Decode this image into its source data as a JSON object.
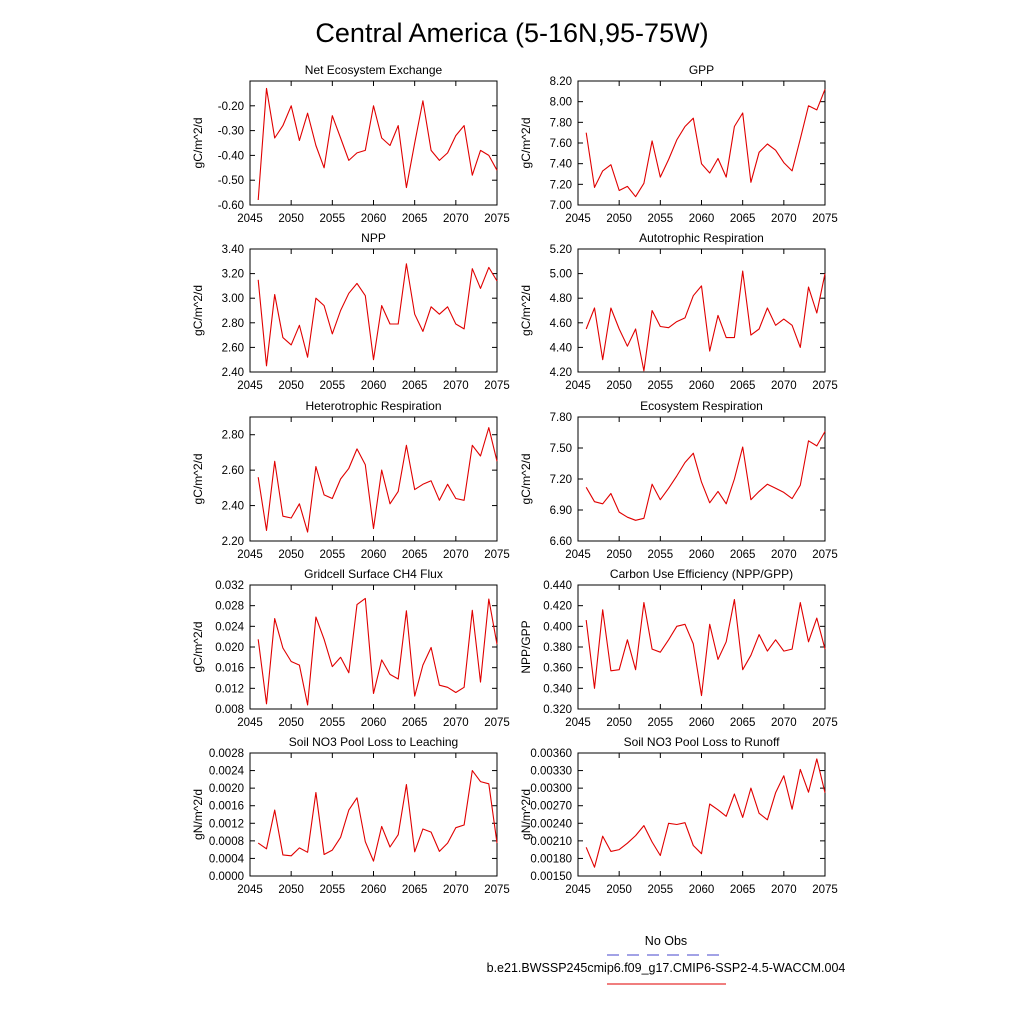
{
  "page": {
    "title": "Central America (5-16N,95-75W)",
    "legend": {
      "entries": [
        {
          "label": "No Obs",
          "color": "#6a6ad8",
          "style": "dashed"
        },
        {
          "label": "b.e21.BWSSP245cmip6.f09_g17.CMIP6-SSP2-4.5-WACCM.004",
          "color": "#e83030",
          "style": "solid"
        }
      ]
    }
  },
  "chart_data": [
    {
      "type": "line",
      "title": "Net Ecosystem Exchange",
      "ylabel": "gC/m^2/d",
      "xlim": [
        2045,
        2075
      ],
      "ylim": [
        -0.6,
        -0.1
      ],
      "xticks": [
        2045,
        2050,
        2055,
        2060,
        2065,
        2070,
        2075
      ],
      "xtick_labels": [
        "2045",
        "2050",
        "2055",
        "2060",
        "2065",
        "2070",
        "2075"
      ],
      "yticks": [
        -0.6,
        -0.5,
        -0.4,
        -0.3,
        -0.2
      ],
      "ytick_labels": [
        "-0.60",
        "-0.50",
        "-0.40",
        "-0.30",
        "-0.20"
      ],
      "x": [
        2046,
        2047,
        2048,
        2049,
        2050,
        2051,
        2052,
        2053,
        2054,
        2055,
        2056,
        2057,
        2058,
        2059,
        2060,
        2061,
        2062,
        2063,
        2064,
        2065,
        2066,
        2067,
        2068,
        2069,
        2070,
        2071,
        2072,
        2073,
        2074,
        2075
      ],
      "series": [
        {
          "color": "#e00000",
          "values": [
            -0.58,
            -0.13,
            -0.33,
            -0.28,
            -0.2,
            -0.34,
            -0.23,
            -0.36,
            -0.45,
            -0.24,
            -0.33,
            -0.42,
            -0.39,
            -0.38,
            -0.2,
            -0.33,
            -0.36,
            -0.28,
            -0.53,
            -0.35,
            -0.18,
            -0.38,
            -0.42,
            -0.39,
            -0.32,
            -0.28,
            -0.48,
            -0.38,
            -0.4,
            -0.46
          ]
        }
      ]
    },
    {
      "type": "line",
      "title": "GPP",
      "ylabel": "gC/m^2/d",
      "xlim": [
        2045,
        2075
      ],
      "ylim": [
        7.0,
        8.2
      ],
      "xticks": [
        2045,
        2050,
        2055,
        2060,
        2065,
        2070,
        2075
      ],
      "xtick_labels": [
        "2045",
        "2050",
        "2055",
        "2060",
        "2065",
        "2070",
        "2075"
      ],
      "yticks": [
        7.0,
        7.2,
        7.4,
        7.6,
        7.8,
        8.0,
        8.2
      ],
      "ytick_labels": [
        "7.00",
        "7.20",
        "7.40",
        "7.60",
        "7.80",
        "8.00",
        "8.20"
      ],
      "x": [
        2046,
        2047,
        2048,
        2049,
        2050,
        2051,
        2052,
        2053,
        2054,
        2055,
        2056,
        2057,
        2058,
        2059,
        2060,
        2061,
        2062,
        2063,
        2064,
        2065,
        2066,
        2067,
        2068,
        2069,
        2070,
        2071,
        2072,
        2073,
        2074,
        2075
      ],
      "series": [
        {
          "color": "#e00000",
          "values": [
            7.7,
            7.17,
            7.33,
            7.39,
            7.14,
            7.18,
            7.08,
            7.21,
            7.62,
            7.27,
            7.44,
            7.63,
            7.76,
            7.84,
            7.4,
            7.31,
            7.45,
            7.27,
            7.76,
            7.89,
            7.22,
            7.51,
            7.59,
            7.53,
            7.41,
            7.33,
            7.64,
            7.96,
            7.92,
            8.12
          ]
        }
      ]
    },
    {
      "type": "line",
      "title": "NPP",
      "ylabel": "gC/m^2/d",
      "xlim": [
        2045,
        2075
      ],
      "ylim": [
        2.4,
        3.4
      ],
      "xticks": [
        2045,
        2050,
        2055,
        2060,
        2065,
        2070,
        2075
      ],
      "xtick_labels": [
        "2045",
        "2050",
        "2055",
        "2060",
        "2065",
        "2070",
        "2075"
      ],
      "yticks": [
        2.4,
        2.6,
        2.8,
        3.0,
        3.2,
        3.4
      ],
      "ytick_labels": [
        "2.40",
        "2.60",
        "2.80",
        "3.00",
        "3.20",
        "3.40"
      ],
      "x": [
        2046,
        2047,
        2048,
        2049,
        2050,
        2051,
        2052,
        2053,
        2054,
        2055,
        2056,
        2057,
        2058,
        2059,
        2060,
        2061,
        2062,
        2063,
        2064,
        2065,
        2066,
        2067,
        2068,
        2069,
        2070,
        2071,
        2072,
        2073,
        2074,
        2075
      ],
      "series": [
        {
          "color": "#e00000",
          "values": [
            3.15,
            2.45,
            3.03,
            2.68,
            2.62,
            2.78,
            2.52,
            3.0,
            2.94,
            2.71,
            2.9,
            3.04,
            3.12,
            3.02,
            2.5,
            2.94,
            2.79,
            2.79,
            3.28,
            2.87,
            2.73,
            2.93,
            2.87,
            2.93,
            2.79,
            2.75,
            3.24,
            3.08,
            3.25,
            3.14
          ]
        }
      ]
    },
    {
      "type": "line",
      "title": "Autotrophic Respiration",
      "ylabel": "gC/m^2/d",
      "xlim": [
        2045,
        2075
      ],
      "ylim": [
        4.2,
        5.2
      ],
      "xticks": [
        2045,
        2050,
        2055,
        2060,
        2065,
        2070,
        2075
      ],
      "xtick_labels": [
        "2045",
        "2050",
        "2055",
        "2060",
        "2065",
        "2070",
        "2075"
      ],
      "yticks": [
        4.2,
        4.4,
        4.6,
        4.8,
        5.0,
        5.2
      ],
      "ytick_labels": [
        "4.20",
        "4.40",
        "4.60",
        "4.80",
        "5.00",
        "5.20"
      ],
      "x": [
        2046,
        2047,
        2048,
        2049,
        2050,
        2051,
        2052,
        2053,
        2054,
        2055,
        2056,
        2057,
        2058,
        2059,
        2060,
        2061,
        2062,
        2063,
        2064,
        2065,
        2066,
        2067,
        2068,
        2069,
        2070,
        2071,
        2072,
        2073,
        2074,
        2075
      ],
      "series": [
        {
          "color": "#e00000",
          "values": [
            4.55,
            4.72,
            4.3,
            4.72,
            4.55,
            4.41,
            4.55,
            4.21,
            4.7,
            4.57,
            4.56,
            4.61,
            4.64,
            4.82,
            4.9,
            4.37,
            4.66,
            4.48,
            4.48,
            5.02,
            4.5,
            4.55,
            4.72,
            4.58,
            4.63,
            4.58,
            4.4,
            4.89,
            4.68,
            5.0
          ]
        }
      ]
    },
    {
      "type": "line",
      "title": "Heterotrophic Respiration",
      "ylabel": "gC/m^2/d",
      "xlim": [
        2045,
        2075
      ],
      "ylim": [
        2.2,
        2.9
      ],
      "xticks": [
        2045,
        2050,
        2055,
        2060,
        2065,
        2070,
        2075
      ],
      "xtick_labels": [
        "2045",
        "2050",
        "2055",
        "2060",
        "2065",
        "2070",
        "2075"
      ],
      "yticks": [
        2.2,
        2.4,
        2.6,
        2.8
      ],
      "ytick_labels": [
        "2.20",
        "2.40",
        "2.60",
        "2.80"
      ],
      "x": [
        2046,
        2047,
        2048,
        2049,
        2050,
        2051,
        2052,
        2053,
        2054,
        2055,
        2056,
        2057,
        2058,
        2059,
        2060,
        2061,
        2062,
        2063,
        2064,
        2065,
        2066,
        2067,
        2068,
        2069,
        2070,
        2071,
        2072,
        2073,
        2074,
        2075
      ],
      "series": [
        {
          "color": "#e00000",
          "values": [
            2.56,
            2.26,
            2.65,
            2.34,
            2.33,
            2.41,
            2.25,
            2.62,
            2.46,
            2.44,
            2.55,
            2.61,
            2.72,
            2.63,
            2.27,
            2.6,
            2.41,
            2.48,
            2.74,
            2.49,
            2.52,
            2.54,
            2.43,
            2.52,
            2.44,
            2.43,
            2.74,
            2.68,
            2.84,
            2.65
          ]
        }
      ]
    },
    {
      "type": "line",
      "title": "Ecosystem Respiration",
      "ylabel": "gC/m^2/d",
      "xlim": [
        2045,
        2075
      ],
      "ylim": [
        6.6,
        7.8
      ],
      "xticks": [
        2045,
        2050,
        2055,
        2060,
        2065,
        2070,
        2075
      ],
      "xtick_labels": [
        "2045",
        "2050",
        "2055",
        "2060",
        "2065",
        "2070",
        "2075"
      ],
      "yticks": [
        6.6,
        6.9,
        7.2,
        7.5,
        7.8
      ],
      "ytick_labels": [
        "6.60",
        "6.90",
        "7.20",
        "7.50",
        "7.80"
      ],
      "x": [
        2046,
        2047,
        2048,
        2049,
        2050,
        2051,
        2052,
        2053,
        2054,
        2055,
        2056,
        2057,
        2058,
        2059,
        2060,
        2061,
        2062,
        2063,
        2064,
        2065,
        2066,
        2067,
        2068,
        2069,
        2070,
        2071,
        2072,
        2073,
        2074,
        2075
      ],
      "series": [
        {
          "color": "#e00000",
          "values": [
            7.12,
            6.98,
            6.96,
            7.06,
            6.88,
            6.83,
            6.8,
            6.82,
            7.15,
            7.0,
            7.11,
            7.23,
            7.36,
            7.45,
            7.17,
            6.97,
            7.08,
            6.96,
            7.2,
            7.51,
            7.0,
            7.08,
            7.15,
            7.11,
            7.07,
            7.01,
            7.14,
            7.57,
            7.52,
            7.66
          ]
        }
      ]
    },
    {
      "type": "line",
      "title": "Gridcell Surface CH4 Flux",
      "ylabel": "gC/m^2/d",
      "xlim": [
        2045,
        2075
      ],
      "ylim": [
        0.008,
        0.032
      ],
      "xticks": [
        2045,
        2050,
        2055,
        2060,
        2065,
        2070,
        2075
      ],
      "xtick_labels": [
        "2045",
        "2050",
        "2055",
        "2060",
        "2065",
        "2070",
        "2075"
      ],
      "yticks": [
        0.008,
        0.012,
        0.016,
        0.02,
        0.024,
        0.028,
        0.032
      ],
      "ytick_labels": [
        "0.008",
        "0.012",
        "0.016",
        "0.020",
        "0.024",
        "0.028",
        "0.032"
      ],
      "x": [
        2046,
        2047,
        2048,
        2049,
        2050,
        2051,
        2052,
        2053,
        2054,
        2055,
        2056,
        2057,
        2058,
        2059,
        2060,
        2061,
        2062,
        2063,
        2064,
        2065,
        2066,
        2067,
        2068,
        2069,
        2070,
        2071,
        2072,
        2073,
        2074,
        2075
      ],
      "series": [
        {
          "color": "#e00000",
          "values": [
            0.0215,
            0.009,
            0.0255,
            0.0198,
            0.0172,
            0.0165,
            0.0088,
            0.0258,
            0.0215,
            0.0162,
            0.018,
            0.015,
            0.0282,
            0.0294,
            0.011,
            0.0175,
            0.0147,
            0.0138,
            0.027,
            0.0105,
            0.0165,
            0.0199,
            0.0126,
            0.0122,
            0.0112,
            0.0122,
            0.0271,
            0.0132,
            0.0293,
            0.0205
          ]
        }
      ]
    },
    {
      "type": "line",
      "title": "Carbon Use Efficiency (NPP/GPP)",
      "ylabel": "NPP/GPP",
      "xlim": [
        2045,
        2075
      ],
      "ylim": [
        0.32,
        0.44
      ],
      "xticks": [
        2045,
        2050,
        2055,
        2060,
        2065,
        2070,
        2075
      ],
      "xtick_labels": [
        "2045",
        "2050",
        "2055",
        "2060",
        "2065",
        "2070",
        "2075"
      ],
      "yticks": [
        0.32,
        0.34,
        0.36,
        0.38,
        0.4,
        0.42,
        0.44
      ],
      "ytick_labels": [
        "0.320",
        "0.340",
        "0.360",
        "0.380",
        "0.400",
        "0.420",
        "0.440"
      ],
      "x": [
        2046,
        2047,
        2048,
        2049,
        2050,
        2051,
        2052,
        2053,
        2054,
        2055,
        2056,
        2057,
        2058,
        2059,
        2060,
        2061,
        2062,
        2063,
        2064,
        2065,
        2066,
        2067,
        2068,
        2069,
        2070,
        2071,
        2072,
        2073,
        2074,
        2075
      ],
      "series": [
        {
          "color": "#e00000",
          "values": [
            0.406,
            0.34,
            0.416,
            0.357,
            0.358,
            0.387,
            0.358,
            0.423,
            0.378,
            0.375,
            0.387,
            0.4,
            0.402,
            0.383,
            0.333,
            0.402,
            0.368,
            0.385,
            0.426,
            0.358,
            0.372,
            0.392,
            0.376,
            0.387,
            0.376,
            0.378,
            0.423,
            0.385,
            0.408,
            0.378
          ]
        }
      ]
    },
    {
      "type": "line",
      "title": "Soil NO3 Pool Loss to Leaching",
      "ylabel": "gN/m^2/d",
      "xlim": [
        2045,
        2075
      ],
      "ylim": [
        0,
        0.0028
      ],
      "xticks": [
        2045,
        2050,
        2055,
        2060,
        2065,
        2070,
        2075
      ],
      "xtick_labels": [
        "2045",
        "2050",
        "2055",
        "2060",
        "2065",
        "2070",
        "2075"
      ],
      "yticks": [
        0,
        0.0004,
        0.0008,
        0.0012,
        0.0016,
        0.002,
        0.0024,
        0.0028
      ],
      "ytick_labels": [
        "0.0000",
        "0.0004",
        "0.0008",
        "0.0012",
        "0.0016",
        "0.0020",
        "0.0024",
        "0.0028"
      ],
      "x": [
        2046,
        2047,
        2048,
        2049,
        2050,
        2051,
        2052,
        2053,
        2054,
        2055,
        2056,
        2057,
        2058,
        2059,
        2060,
        2061,
        2062,
        2063,
        2064,
        2065,
        2066,
        2067,
        2068,
        2069,
        2070,
        2071,
        2072,
        2073,
        2074,
        2075
      ],
      "series": [
        {
          "color": "#e00000",
          "values": [
            0.00075,
            0.00062,
            0.0015,
            0.00048,
            0.00046,
            0.00064,
            0.00054,
            0.0019,
            0.00049,
            0.00059,
            0.00088,
            0.0015,
            0.00178,
            0.00078,
            0.00034,
            0.00113,
            0.00066,
            0.00094,
            0.00208,
            0.00055,
            0.00107,
            0.001,
            0.00056,
            0.00075,
            0.0011,
            0.00116,
            0.0024,
            0.00215,
            0.0021,
            0.00075
          ]
        }
      ]
    },
    {
      "type": "line",
      "title": "Soil NO3 Pool Loss to Runoff",
      "ylabel": "gN/m^2/d",
      "xlim": [
        2045,
        2075
      ],
      "ylim": [
        0.0015,
        0.0036
      ],
      "xticks": [
        2045,
        2050,
        2055,
        2060,
        2065,
        2070,
        2075
      ],
      "xtick_labels": [
        "2045",
        "2050",
        "2055",
        "2060",
        "2065",
        "2070",
        "2075"
      ],
      "yticks": [
        0.0015,
        0.0018,
        0.0021,
        0.0024,
        0.0027,
        0.003,
        0.0033,
        0.0036
      ],
      "ytick_labels": [
        "0.00150",
        "0.00180",
        "0.00210",
        "0.00240",
        "0.00270",
        "0.00300",
        "0.00330",
        "0.00360"
      ],
      "x": [
        2046,
        2047,
        2048,
        2049,
        2050,
        2051,
        2052,
        2053,
        2054,
        2055,
        2056,
        2057,
        2058,
        2059,
        2060,
        2061,
        2062,
        2063,
        2064,
        2065,
        2066,
        2067,
        2068,
        2069,
        2070,
        2071,
        2072,
        2073,
        2074,
        2075
      ],
      "series": [
        {
          "color": "#e00000",
          "values": [
            0.00199,
            0.00165,
            0.00218,
            0.00192,
            0.00195,
            0.00206,
            0.00219,
            0.00236,
            0.00208,
            0.00185,
            0.0024,
            0.00238,
            0.00241,
            0.00202,
            0.00188,
            0.00273,
            0.00263,
            0.00252,
            0.0029,
            0.0025,
            0.003,
            0.00257,
            0.00246,
            0.00292,
            0.00321,
            0.00264,
            0.00332,
            0.00293,
            0.0035,
            0.00292
          ]
        }
      ]
    }
  ]
}
